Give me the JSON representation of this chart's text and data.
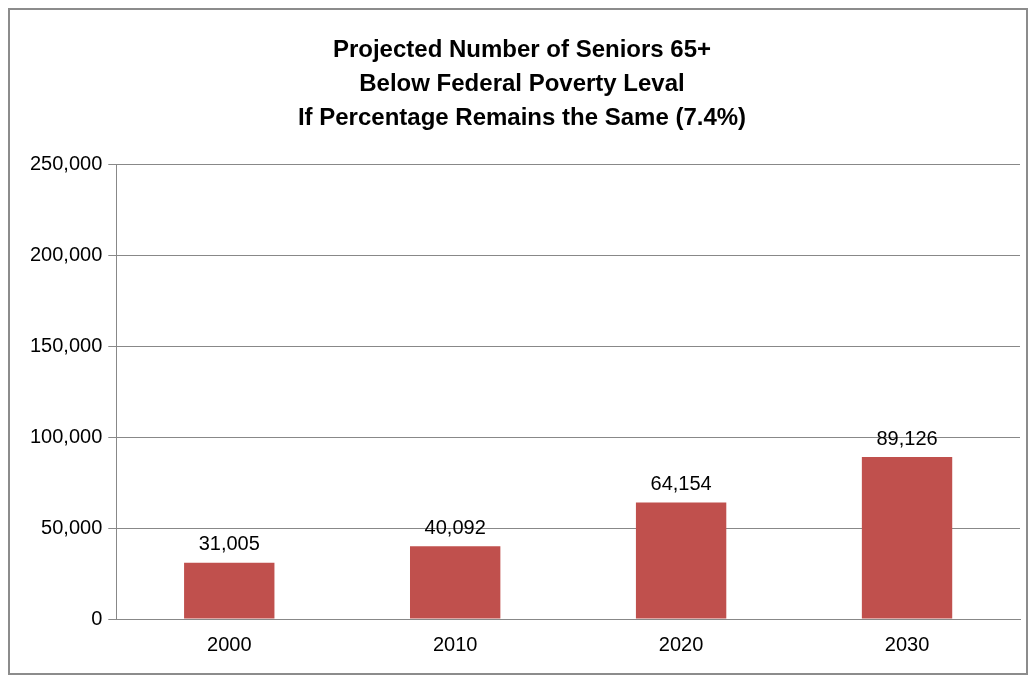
{
  "chart_data": {
    "type": "bar",
    "title": "Projected Number of Seniors 65+\nBelow Federal Poverty Leval\nIf Percentage Remains the Same (7.4%)",
    "categories": [
      "2000",
      "2010",
      "2020",
      "2030"
    ],
    "values": [
      31005,
      40092,
      64154,
      89126
    ],
    "value_labels": [
      "31,005",
      "40,092",
      "64,154",
      "89,126"
    ],
    "color": "#c0504d",
    "ylim": [
      0,
      250000
    ],
    "yticks": [
      {
        "value": 0,
        "label": "0"
      },
      {
        "value": 50000,
        "label": "50,000"
      },
      {
        "value": 100000,
        "label": "100,000"
      },
      {
        "value": 150000,
        "label": "150,000"
      },
      {
        "value": 200000,
        "label": "200,000"
      },
      {
        "value": 250000,
        "label": "250,000"
      }
    ],
    "grid": "y",
    "legend": false
  }
}
